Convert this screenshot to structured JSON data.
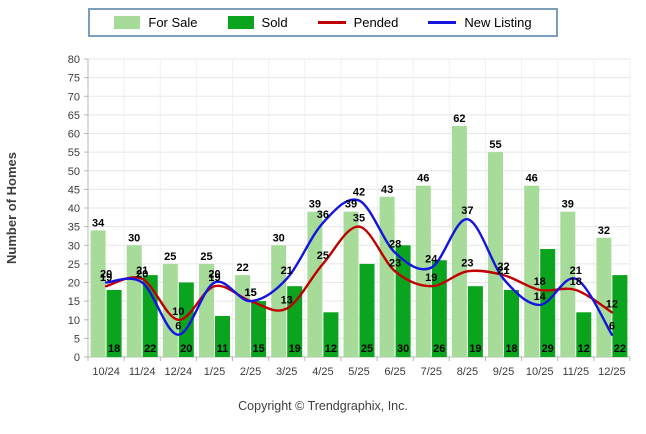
{
  "legend": {
    "items": [
      {
        "label": "For Sale",
        "type": "bar",
        "color": "#a7db99"
      },
      {
        "label": "Sold",
        "type": "bar",
        "color": "#0ba41e"
      },
      {
        "label": "Pended",
        "type": "line",
        "color": "#c00000"
      },
      {
        "label": "New Listing",
        "type": "line",
        "color": "#1414e0"
      }
    ]
  },
  "copyright": "Copyright © Trendgraphix, Inc.",
  "chart_data": {
    "type": "bar",
    "subtype": "grouped bars with smoothed overlay lines",
    "categories": [
      "10/24",
      "11/24",
      "12/24",
      "1/25",
      "2/25",
      "3/25",
      "4/25",
      "5/25",
      "6/25",
      "7/25",
      "8/25",
      "9/25",
      "10/25",
      "11/25",
      "12/25"
    ],
    "series": [
      {
        "name": "For Sale",
        "type": "bar",
        "color": "#a7db99",
        "values": [
          34,
          30,
          25,
          25,
          22,
          30,
          39,
          39,
          43,
          46,
          62,
          55,
          46,
          39,
          32
        ]
      },
      {
        "name": "Sold",
        "type": "bar",
        "color": "#0ba41e",
        "values": [
          18,
          22,
          20,
          11,
          15,
          19,
          12,
          25,
          30,
          26,
          19,
          18,
          29,
          12,
          22
        ]
      },
      {
        "name": "Pended",
        "type": "line",
        "color": "#c00000",
        "values": [
          19,
          21,
          10,
          19,
          15,
          13,
          25,
          35,
          23,
          19,
          23,
          22,
          18,
          18,
          12
        ]
      },
      {
        "name": "New Listing",
        "type": "line",
        "color": "#1414e0",
        "values": [
          20,
          20,
          6,
          20,
          15,
          21,
          36,
          42,
          28,
          24,
          37,
          21,
          14,
          21,
          6
        ]
      }
    ],
    "title": "",
    "xlabel": "",
    "ylabel": "Number of Homes",
    "ylim": [
      0,
      80
    ],
    "ytick_step": 5,
    "grid": true,
    "legend_position": "top",
    "value_labels": true
  }
}
